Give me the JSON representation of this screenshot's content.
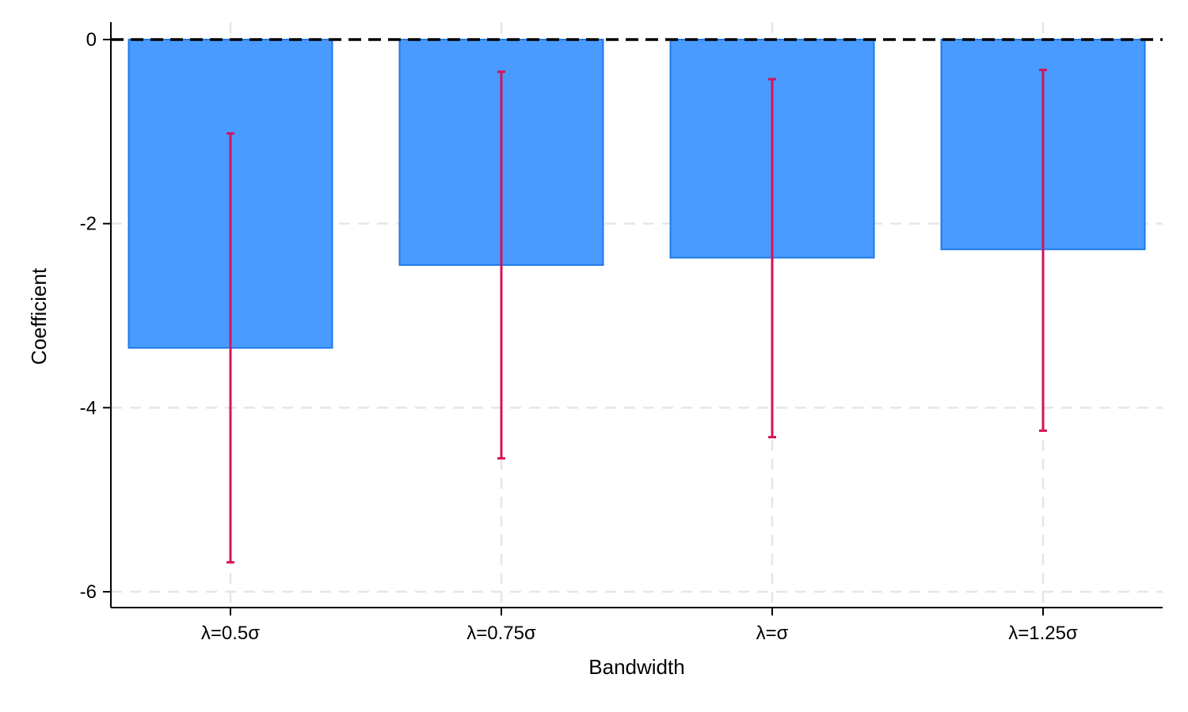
{
  "chart_data": {
    "type": "bar",
    "xlabel": "Bandwidth",
    "ylabel": "Coefficient",
    "categories": [
      "λ=0.5σ",
      "λ=0.75σ",
      "λ=σ",
      "λ=1.25σ"
    ],
    "values": [
      -3.35,
      -2.45,
      -2.37,
      -2.28
    ],
    "ci_lower": [
      -5.68,
      -4.55,
      -4.32,
      -4.25
    ],
    "ci_upper": [
      -1.02,
      -0.35,
      -0.43,
      -0.33
    ],
    "ylim": [
      -6.15,
      0.1
    ],
    "yticks": [
      0,
      -2,
      -4,
      -6
    ],
    "ytick_labels": [
      "0",
      "-2",
      "-4",
      "-6"
    ],
    "reference_line": 0,
    "grid": true,
    "colors": {
      "bar_fill": "#4a9bff",
      "bar_edge": "#1f7ae6",
      "error_bar": "#d3145a",
      "grid": "#e6e6e6",
      "reference_line": "#000000"
    }
  }
}
